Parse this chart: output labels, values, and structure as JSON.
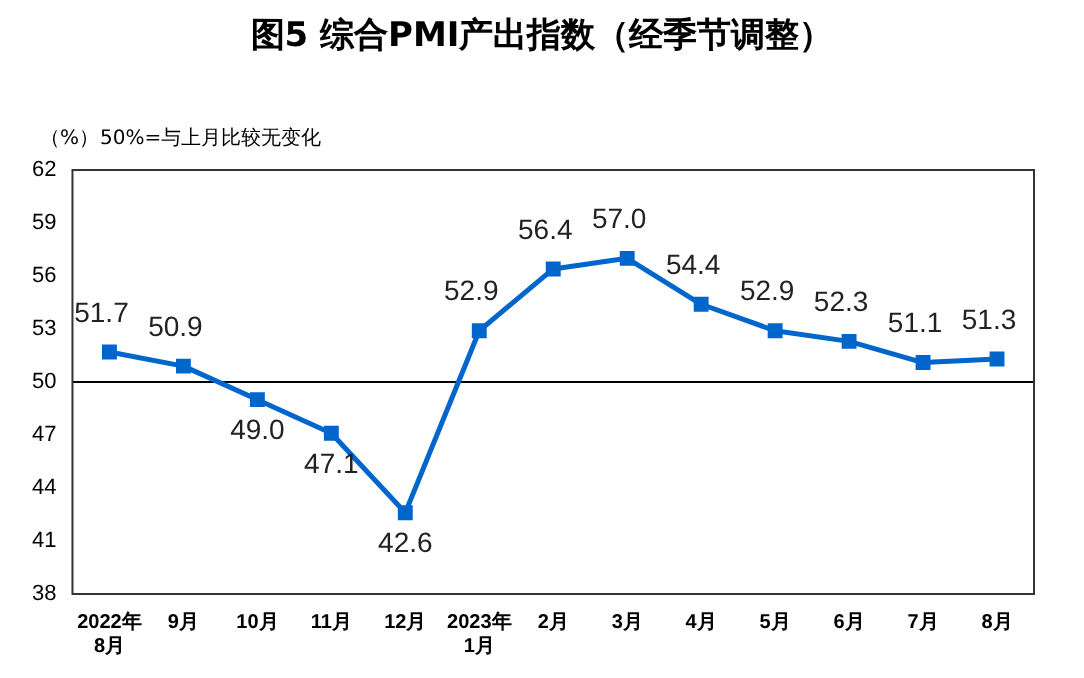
{
  "chart_data": {
    "type": "line",
    "title": "图5  综合PMI产出指数（经季节调整）",
    "ylabel": "（%）",
    "annotations": [
      "50%=与上月比较无变化"
    ],
    "categories": [
      "2022年\n8月",
      "9月",
      "10月",
      "11月",
      "12月",
      "2023年\n1月",
      "2月",
      "3月",
      "4月",
      "5月",
      "6月",
      "7月",
      "8月"
    ],
    "series": [
      {
        "color": "#0066cc",
        "values": [
          51.7,
          50.9,
          49.0,
          47.1,
          42.6,
          52.9,
          56.4,
          57.0,
          54.4,
          52.9,
          52.3,
          51.1,
          51.3
        ],
        "value_labels": [
          "51.7",
          "50.9",
          "49.0",
          "47.1",
          "42.6",
          "52.9",
          "56.4",
          "57.0",
          "54.4",
          "52.9",
          "52.3",
          "51.1",
          "51.3"
        ]
      }
    ],
    "ylim": [
      38,
      62
    ],
    "yticks": [
      38,
      41,
      44,
      47,
      50,
      53,
      56,
      59,
      62
    ],
    "ref_lines": [
      {
        "axis": "y",
        "value": 50,
        "color": "#000000"
      }
    ],
    "marker": "square",
    "line_style": "solid",
    "grid": false,
    "legend": false
  }
}
